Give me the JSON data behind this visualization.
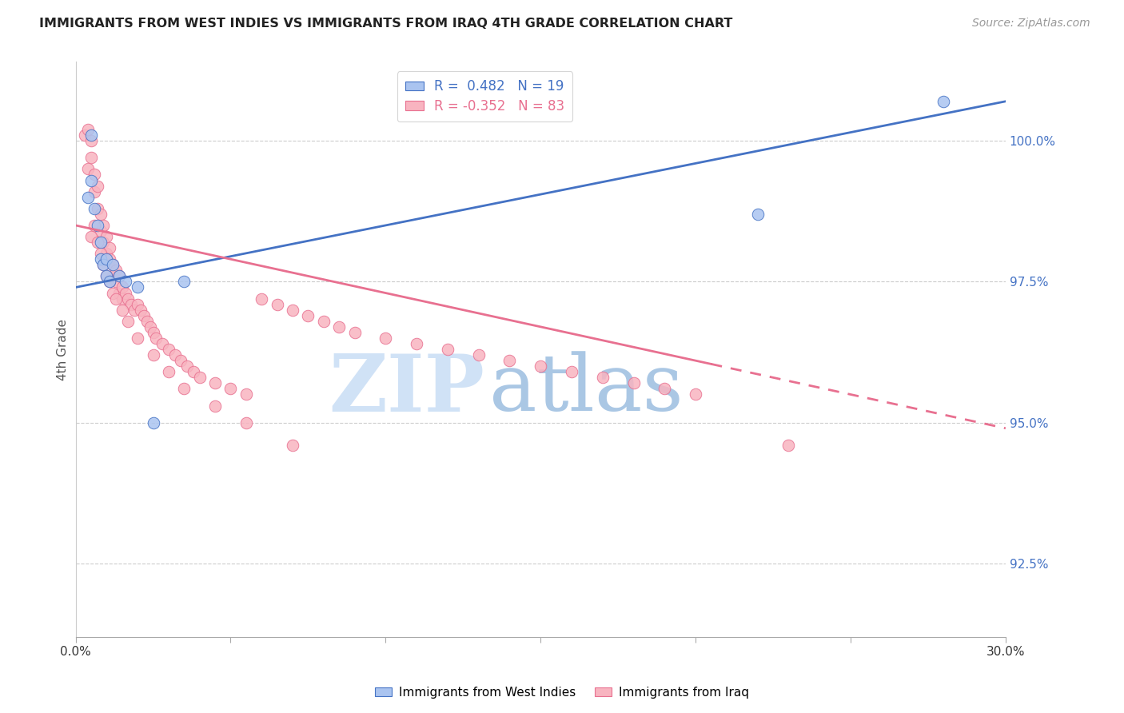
{
  "title": "IMMIGRANTS FROM WEST INDIES VS IMMIGRANTS FROM IRAQ 4TH GRADE CORRELATION CHART",
  "source": "Source: ZipAtlas.com",
  "ylabel": "4th Grade",
  "y_ticks": [
    92.5,
    95.0,
    97.5,
    100.0
  ],
  "y_tick_labels": [
    "92.5%",
    "95.0%",
    "97.5%",
    "100.0%"
  ],
  "x_range": [
    0.0,
    30.0
  ],
  "y_range": [
    91.2,
    101.4
  ],
  "legend_blue_r": "0.482",
  "legend_blue_n": "19",
  "legend_pink_r": "-0.352",
  "legend_pink_n": "83",
  "watermark_zip": "ZIP",
  "watermark_atlas": "atlas",
  "blue_color": "#aac4f0",
  "pink_color": "#f8b4c0",
  "line_blue": "#4472c4",
  "line_pink": "#e87090",
  "blue_line_x0": 0.0,
  "blue_line_y0": 97.4,
  "blue_line_x1": 30.0,
  "blue_line_y1": 100.7,
  "pink_line_x0": 0.0,
  "pink_line_y0": 98.5,
  "pink_line_x1": 30.0,
  "pink_line_y1": 94.9,
  "pink_solid_end": 20.5,
  "blue_scatter_x": [
    0.4,
    0.5,
    0.5,
    0.6,
    0.7,
    0.8,
    0.8,
    0.9,
    1.0,
    1.0,
    1.1,
    1.2,
    1.4,
    1.6,
    2.0,
    2.5,
    3.5,
    22.0,
    28.0
  ],
  "blue_scatter_y": [
    99.0,
    100.1,
    99.3,
    98.8,
    98.5,
    98.2,
    97.9,
    97.8,
    97.9,
    97.6,
    97.5,
    97.8,
    97.6,
    97.5,
    97.4,
    95.0,
    97.5,
    98.7,
    100.7
  ],
  "pink_scatter_x": [
    0.3,
    0.4,
    0.4,
    0.5,
    0.5,
    0.6,
    0.6,
    0.7,
    0.7,
    0.8,
    0.8,
    0.9,
    0.9,
    1.0,
    1.0,
    1.1,
    1.1,
    1.2,
    1.2,
    1.3,
    1.3,
    1.4,
    1.4,
    1.5,
    1.5,
    1.6,
    1.7,
    1.8,
    1.9,
    2.0,
    2.1,
    2.2,
    2.3,
    2.4,
    2.5,
    2.6,
    2.8,
    3.0,
    3.2,
    3.4,
    3.6,
    3.8,
    4.0,
    4.5,
    5.0,
    5.5,
    6.0,
    6.5,
    7.0,
    7.5,
    8.0,
    8.5,
    9.0,
    10.0,
    11.0,
    12.0,
    13.0,
    14.0,
    15.0,
    16.0,
    17.0,
    18.0,
    19.0,
    20.0,
    0.5,
    0.6,
    0.7,
    0.8,
    0.9,
    1.0,
    1.1,
    1.2,
    1.3,
    1.5,
    1.7,
    2.0,
    2.5,
    3.0,
    3.5,
    4.5,
    5.5,
    7.0,
    23.0
  ],
  "pink_scatter_y": [
    100.1,
    100.2,
    99.5,
    100.0,
    99.7,
    99.4,
    99.1,
    99.2,
    98.8,
    98.7,
    98.4,
    98.5,
    98.2,
    98.3,
    98.0,
    98.1,
    97.9,
    97.8,
    97.6,
    97.7,
    97.5,
    97.6,
    97.3,
    97.4,
    97.2,
    97.3,
    97.2,
    97.1,
    97.0,
    97.1,
    97.0,
    96.9,
    96.8,
    96.7,
    96.6,
    96.5,
    96.4,
    96.3,
    96.2,
    96.1,
    96.0,
    95.9,
    95.8,
    95.7,
    95.6,
    95.5,
    97.2,
    97.1,
    97.0,
    96.9,
    96.8,
    96.7,
    96.6,
    96.5,
    96.4,
    96.3,
    96.2,
    96.1,
    96.0,
    95.9,
    95.8,
    95.7,
    95.6,
    95.5,
    98.3,
    98.5,
    98.2,
    98.0,
    97.8,
    97.6,
    97.5,
    97.3,
    97.2,
    97.0,
    96.8,
    96.5,
    96.2,
    95.9,
    95.6,
    95.3,
    95.0,
    94.6,
    94.6
  ]
}
